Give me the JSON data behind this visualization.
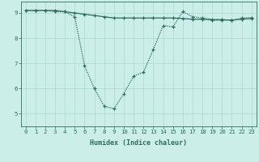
{
  "line1_x": [
    0,
    1,
    2,
    3,
    4,
    5,
    6,
    7,
    8,
    9,
    10,
    11,
    12,
    13,
    14,
    15,
    16,
    17,
    18,
    19,
    20,
    21,
    22,
    23
  ],
  "line1_y": [
    9.1,
    9.1,
    9.1,
    9.1,
    9.05,
    9.0,
    8.95,
    8.9,
    8.85,
    8.8,
    8.8,
    8.8,
    8.8,
    8.8,
    8.8,
    8.8,
    8.78,
    8.75,
    8.75,
    8.72,
    8.72,
    8.72,
    8.75,
    8.78
  ],
  "line2_x": [
    0,
    1,
    2,
    3,
    4,
    5,
    6,
    7,
    8,
    9,
    10,
    11,
    12,
    13,
    14,
    15,
    16,
    17,
    18,
    19,
    20,
    21,
    22,
    23
  ],
  "line2_y": [
    9.1,
    9.1,
    9.1,
    9.05,
    9.05,
    8.85,
    6.9,
    6.0,
    5.3,
    5.2,
    5.8,
    6.5,
    6.65,
    7.55,
    8.5,
    8.45,
    9.05,
    8.85,
    8.8,
    8.75,
    8.75,
    8.7,
    8.8,
    8.82
  ],
  "line_color": "#2e6b5e",
  "bg_color": "#cceee8",
  "grid_color": "#aad8d0",
  "xlabel": "Humidex (Indice chaleur)",
  "xlim": [
    -0.5,
    23.5
  ],
  "ylim": [
    4.5,
    9.45
  ],
  "yticks": [
    5,
    6,
    7,
    8,
    9
  ],
  "xticks": [
    0,
    1,
    2,
    3,
    4,
    5,
    6,
    7,
    8,
    9,
    10,
    11,
    12,
    13,
    14,
    15,
    16,
    17,
    18,
    19,
    20,
    21,
    22,
    23
  ],
  "xtick_labels": [
    "0",
    "1",
    "2",
    "3",
    "4",
    "5",
    "6",
    "7",
    "8",
    "9",
    "10",
    "11",
    "12",
    "13",
    "14",
    "15",
    "16",
    "17",
    "18",
    "19",
    "20",
    "21",
    "22",
    "23"
  ],
  "axis_fontsize": 6.0,
  "tick_fontsize": 5.2,
  "marker": "+",
  "marker_size": 3.5,
  "marker_edge_width": 0.9,
  "line_width": 0.9
}
